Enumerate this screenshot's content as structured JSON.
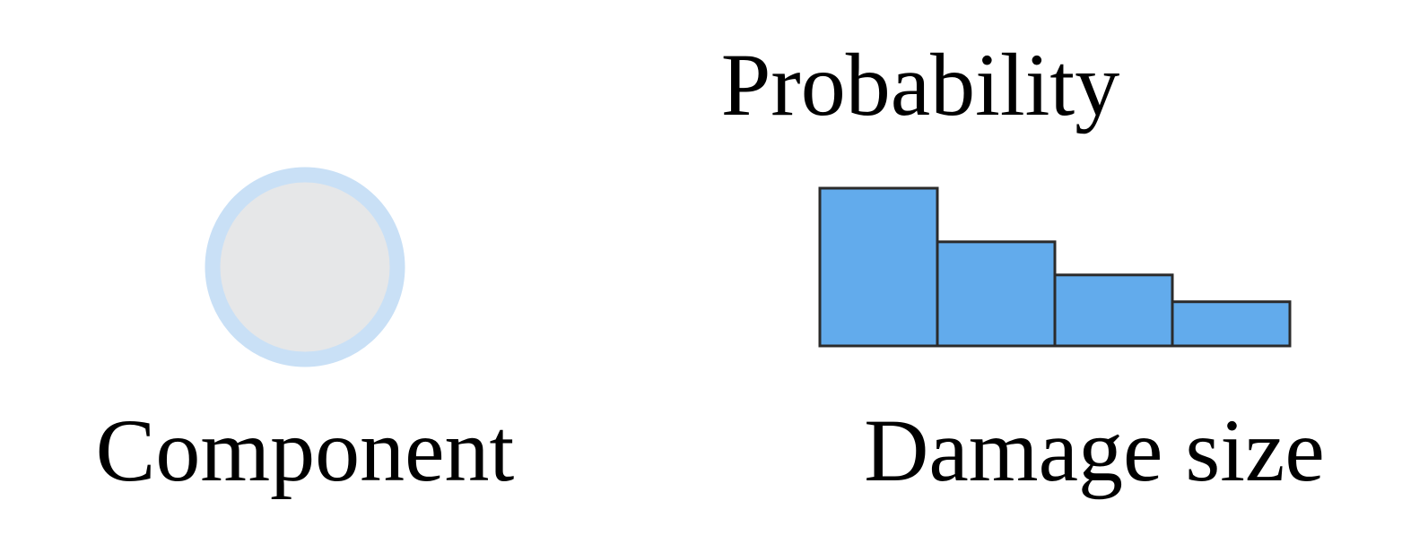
{
  "labels": {
    "component": "Component",
    "probability": "Probability",
    "damage_size": "Damage size"
  },
  "colors": {
    "component_fill": "#e6e7e8",
    "component_ring": "#c9e0f6",
    "bar_fill": "#62abec",
    "bar_stroke": "#2b2b2b",
    "text": "#000000"
  },
  "chart_data": {
    "type": "bar",
    "values": [
      1.0,
      0.66,
      0.45,
      0.28
    ],
    "xlabel": "Damage size",
    "ylabel": "Probability"
  }
}
